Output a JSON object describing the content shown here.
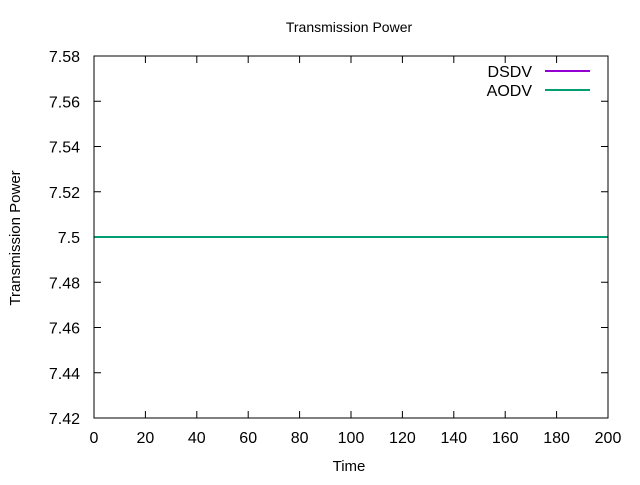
{
  "chart_data": {
    "type": "line",
    "title": "Transmission Power",
    "xlabel": "Time",
    "ylabel": "Transmission Power",
    "xlim": [
      0,
      200
    ],
    "ylim": [
      7.42,
      7.58
    ],
    "xticks": [
      "0",
      "20",
      "40",
      "60",
      "80",
      "100",
      "120",
      "140",
      "160",
      "180",
      "200"
    ],
    "yticks": [
      "7.42",
      "7.44",
      "7.46",
      "7.48",
      "7.5",
      "7.52",
      "7.54",
      "7.56",
      "7.58"
    ],
    "grid": false,
    "legend_position": "top-right",
    "series": [
      {
        "name": "DSDV",
        "color": "#9400d3",
        "x": [
          0,
          200
        ],
        "y": [
          7.5,
          7.5
        ]
      },
      {
        "name": "AODV",
        "color": "#009e73",
        "x": [
          0,
          200
        ],
        "y": [
          7.5,
          7.5
        ]
      }
    ]
  }
}
